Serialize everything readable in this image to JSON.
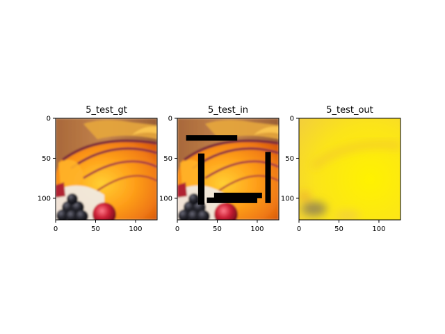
{
  "figure": {
    "panels": [
      {
        "title": "5_test_gt"
      },
      {
        "title": "5_test_in"
      },
      {
        "title": "5_test_out"
      }
    ]
  },
  "chart_data": [
    {
      "type": "image",
      "title": "5_test_gt",
      "xlim": [
        0,
        127
      ],
      "ylim": [
        127,
        0
      ],
      "xticks": [
        0,
        50,
        100
      ],
      "yticks": [
        0,
        50,
        100
      ],
      "content": "photo of sliced orange/peach fruit with dark berries and a red cherry, wooden background",
      "mask_rects": []
    },
    {
      "type": "image",
      "title": "5_test_in",
      "xlim": [
        0,
        127
      ],
      "ylim": [
        127,
        0
      ],
      "xticks": [
        0,
        50,
        100
      ],
      "yticks": [
        0,
        50,
        100
      ],
      "content": "same photo with black masked rectangles",
      "mask_rects": [
        {
          "x0": 11,
          "y0": 21,
          "x1": 75,
          "y1": 28
        },
        {
          "x0": 26,
          "y0": 44,
          "x1": 34,
          "y1": 108
        },
        {
          "x0": 46,
          "y0": 93,
          "x1": 106,
          "y1": 100
        },
        {
          "x0": 37,
          "y0": 99,
          "x1": 100,
          "y1": 106
        },
        {
          "x0": 110,
          "y0": 42,
          "x1": 117,
          "y1": 106
        }
      ]
    },
    {
      "type": "image",
      "title": "5_test_out",
      "xlim": [
        0,
        127
      ],
      "ylim": [
        127,
        0
      ],
      "xticks": [
        0,
        50,
        100
      ],
      "yticks": [
        0,
        50,
        100
      ],
      "content": "blurry yellow reconstruction with faint dark blobs bottom-left",
      "mask_rects": []
    }
  ]
}
